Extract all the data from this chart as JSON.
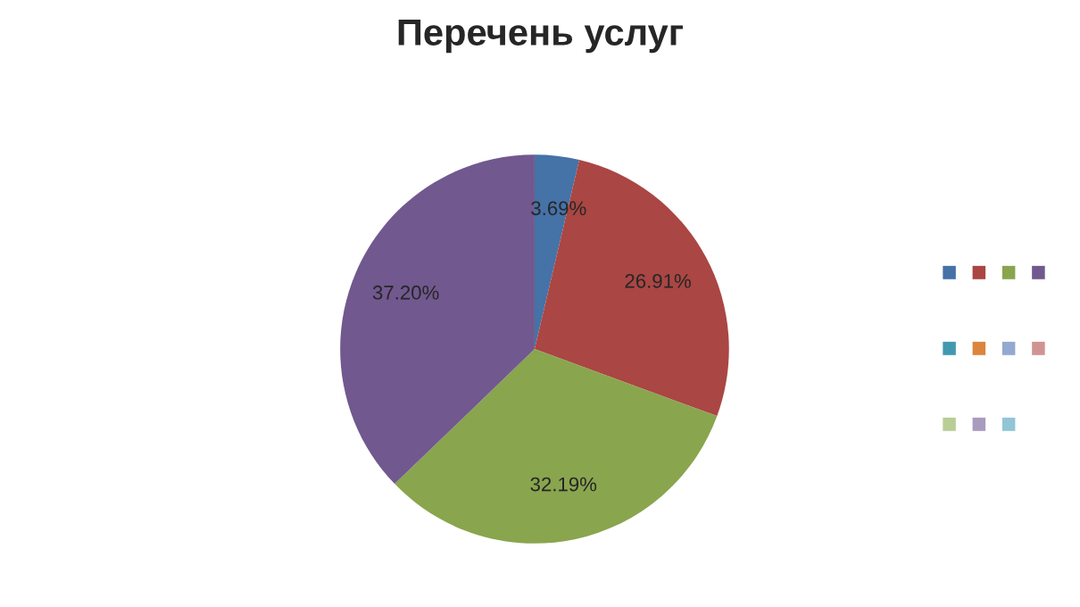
{
  "chart_data": {
    "type": "pie",
    "title": "Перечень услуг",
    "categories": [
      null,
      null,
      null,
      null
    ],
    "values": [
      3.69,
      26.91,
      32.19,
      37.2
    ],
    "value_labels": [
      "3.69%",
      "26.91%",
      "32.19%",
      "37.20%"
    ],
    "colors": [
      "#4572a7",
      "#aa4643",
      "#89a54e",
      "#71588f"
    ]
  }
}
